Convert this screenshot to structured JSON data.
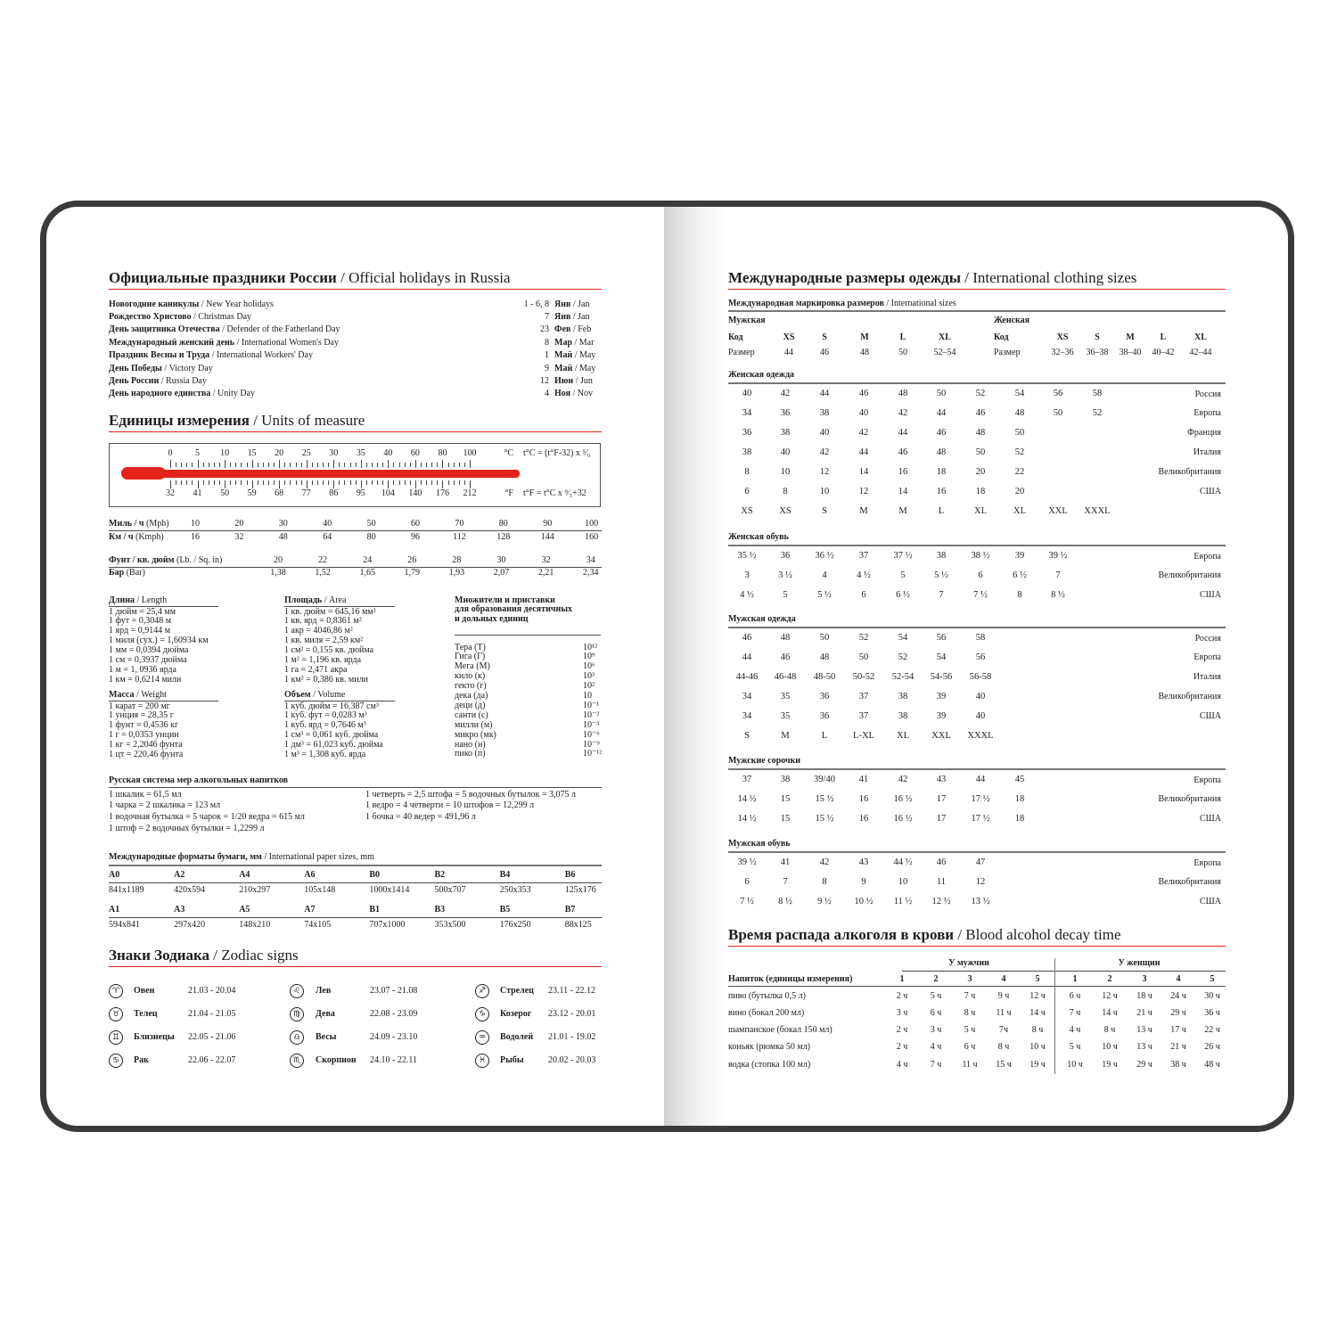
{
  "holidays": {
    "title_ru": "Официальные праздники России",
    "title_en": " / Official holidays in Russia",
    "items": [
      {
        "ru": "Новогодние каникулы",
        "en": " / New Year holidays",
        "day": "1 - 6, 8",
        "month_ru": "Янв",
        "month_en": " / Jan"
      },
      {
        "ru": "Рождество Христово",
        "en": " / Christmas Day",
        "day": "7",
        "month_ru": "Янв",
        "month_en": " / Jan"
      },
      {
        "ru": "День защитника Отечества",
        "en": " / Defender of the Fatherland Day",
        "day": "23",
        "month_ru": "Фев",
        "month_en": " / Feb"
      },
      {
        "ru": "Международный женский день",
        "en": " / International Women's Day",
        "day": "8",
        "month_ru": "Мар",
        "month_en": " / Mar"
      },
      {
        "ru": "Праздник Весны и Труда",
        "en": " / International Workers' Day",
        "day": "1",
        "month_ru": "Май",
        "month_en": " / May"
      },
      {
        "ru": "День Победы",
        "en": " / Victory Day",
        "day": "9",
        "month_ru": "Май",
        "month_en": " / May"
      },
      {
        "ru": "День России",
        "en": " / Russia Day",
        "day": "12",
        "month_ru": "Июн",
        "month_en": " / Jun"
      },
      {
        "ru": "День народного единства",
        "en": " / Unity Day",
        "day": "4",
        "month_ru": "Ноя",
        "month_en": " / Nov"
      }
    ]
  },
  "units": {
    "title_ru": "Единицы измерения",
    "title_en": " / Units of measure",
    "thermometer": {
      "celsius": [
        "0",
        "5",
        "10",
        "15",
        "20",
        "25",
        "30",
        "35",
        "40",
        "60",
        "80",
        "100"
      ],
      "fahrenheit": [
        "32",
        "41",
        "50",
        "59",
        "68",
        "77",
        "86",
        "95",
        "104",
        "140",
        "176",
        "212"
      ],
      "c_unit": "°C",
      "f_unit": "°F",
      "c_formula": "t°C = (t°F-32) x ⁵⁄₉",
      "f_formula": "t°F = t°C x ⁹⁄₅+32",
      "bar_color": "#e2231a"
    },
    "speed": {
      "mph_ru": "Миль / ч",
      "mph_en": " (Mph)",
      "kmph_ru": "Км / ч",
      "kmph_en": " (Kmph)",
      "mph": [
        "10",
        "20",
        "30",
        "40",
        "50",
        "60",
        "70",
        "80",
        "90",
        "100"
      ],
      "kmph": [
        "16",
        "32",
        "48",
        "64",
        "80",
        "96",
        "112",
        "128",
        "144",
        "160"
      ]
    },
    "pressure": {
      "psi_ru": "Фунт / кв. дюйм",
      "psi_en": " (Lb. / Sq. in)",
      "bar_ru": "Бар",
      "bar_en": " (Bar)",
      "psi": [
        "20",
        "22",
        "24",
        "26",
        "28",
        "30",
        "32",
        "34"
      ],
      "bar": [
        "1,38",
        "1,52",
        "1,65",
        "1,79",
        "1,93",
        "2,07",
        "2,21",
        "2,34"
      ]
    },
    "length": {
      "title_ru": "Длина",
      "title_en": " / Length",
      "items": [
        "1 дюйм = 25,4 мм",
        "1 фут = 0,3048 м",
        "1 ярд = 0,9144 м",
        "1 миля (сух.) = 1,60934 км",
        "1 мм = 0,0394 дюйма",
        "1 см = 0,3937 дюйма",
        "1 м = 1, 0936 ярда",
        "1 км = 0,6214 мили"
      ]
    },
    "weight": {
      "title_ru": "Масса",
      "title_en": " / Weight",
      "items": [
        "1 карат = 200 мг",
        "1 унция = 28,35 г",
        "1 фунт = 0,4536 кг",
        "1 г = 0,0353 унции",
        "1 кг = 2,2046 фунта",
        "1 цт = 220,46 фунта"
      ]
    },
    "area": {
      "title_ru": "Площадь",
      "title_en": " / Area",
      "items": [
        "1 кв. дюйм = 645,16 мм²",
        "1 кв. ярд = 0,8361 м²",
        "1 акр = 4046,86 м²",
        "1 кв. миля = 2,59 км²",
        "1 см² = 0,155 кв. дюйма",
        "1 м² = 1,196 кв. ярда",
        "1 га = 2,471 акра",
        "1 км² = 0,386 кв. мили"
      ]
    },
    "volume": {
      "title_ru": "Объем",
      "title_en": " / Volume",
      "items": [
        "1 куб. дюйм = 16,387 см³",
        "1 куб. фут = 0,0283 м³",
        "1 куб. ярд = 0,7646 м³",
        "1 см³ = 0,061 куб. дюйма",
        "1 дм³ = 61,023 куб. дюйма",
        "1 м³ = 1,308 куб. ярда"
      ]
    },
    "prefixes": {
      "title": [
        "Множители и приставки",
        "для образования десятичных",
        "и дольных единиц"
      ],
      "items": [
        {
          "name": "Тера (Т)",
          "value": "10¹²"
        },
        {
          "name": "Гига (Г)",
          "value": "10⁹"
        },
        {
          "name": "Мега (М)",
          "value": "10⁶"
        },
        {
          "name": "кило (к)",
          "value": "10³"
        },
        {
          "name": "гекто (г)",
          "value": "10²"
        },
        {
          "name": "дека (да)",
          "value": "10"
        },
        {
          "name": "деци (д)",
          "value": "10⁻¹"
        },
        {
          "name": "санти (с)",
          "value": "10⁻²"
        },
        {
          "name": "милли (м)",
          "value": "10⁻³"
        },
        {
          "name": "микро (мк)",
          "value": "10⁻⁶"
        },
        {
          "name": "нано (н)",
          "value": "10⁻⁹"
        },
        {
          "name": "пико (п)",
          "value": "10⁻¹²"
        }
      ]
    }
  },
  "alcohol_measures": {
    "title": "Русская система мер алкогольных напитков",
    "left": [
      "1 шкалик = 61,5 мл",
      "1 чарка = 2 шкалика = 123 мл",
      "1 водочная бутылка = 5 чарок = 1/20 ведра = 615 мл",
      "1 штоф = 2 водочных бутылки = 1,2299 л"
    ],
    "right": [
      "1 четверть = 2,5 штофа = 5 водочных бутылок = 3,075 л",
      "1 ведро = 4 четверти = 10 штофов = 12,299 л",
      "1 бочка = 40 ведер = 491,96 л"
    ]
  },
  "paper": {
    "title_ru": "Международные форматы бумаги, мм",
    "title_en": " / International paper sizes, mm",
    "rows": [
      [
        {
          "name": "A0",
          "size": "841x1189"
        },
        {
          "name": "A2",
          "size": "420x594"
        },
        {
          "name": "A4",
          "size": "210x297"
        },
        {
          "name": "A6",
          "size": "105x148"
        },
        {
          "name": "B0",
          "size": "1000x1414"
        },
        {
          "name": "B2",
          "size": "500x707"
        },
        {
          "name": "B4",
          "size": "250x353"
        },
        {
          "name": "B6",
          "size": "125x176"
        }
      ],
      [
        {
          "name": "A1",
          "size": "594x841"
        },
        {
          "name": "A3",
          "size": "297x420"
        },
        {
          "name": "A5",
          "size": "148x210"
        },
        {
          "name": "A7",
          "size": "74x105"
        },
        {
          "name": "B1",
          "size": "707x1000"
        },
        {
          "name": "B3",
          "size": "353x500"
        },
        {
          "name": "B5",
          "size": "176x250"
        },
        {
          "name": "B7",
          "size": "88x125"
        }
      ]
    ]
  },
  "zodiac": {
    "title_ru": "Знаки Зодиака",
    "title_en": " / Zodiac signs",
    "signs": [
      {
        "name": "Овен",
        "dates": "21.03 - 20.04",
        "icon": "aries-icon",
        "glyph": "♈"
      },
      {
        "name": "Телец",
        "dates": "21.04 - 21.05",
        "icon": "taurus-icon",
        "glyph": "♉"
      },
      {
        "name": "Близнецы",
        "dates": "22.05 - 21.06",
        "icon": "gemini-icon",
        "glyph": "♊"
      },
      {
        "name": "Рак",
        "dates": "22.06 - 22.07",
        "icon": "cancer-icon",
        "glyph": "♋"
      },
      {
        "name": "Лев",
        "dates": "23.07 - 21.08",
        "icon": "leo-icon",
        "glyph": "♌"
      },
      {
        "name": "Дева",
        "dates": "22.08 - 23.09",
        "icon": "virgo-icon",
        "glyph": "♍"
      },
      {
        "name": "Весы",
        "dates": "24.09 - 23.10",
        "icon": "libra-icon",
        "glyph": "♎"
      },
      {
        "name": "Скорпион",
        "dates": "24.10 - 22.11",
        "icon": "scorpio-icon",
        "glyph": "♏"
      },
      {
        "name": "Стрелец",
        "dates": "23.11 - 22.12",
        "icon": "sagittarius-icon",
        "glyph": "♐"
      },
      {
        "name": "Козерог",
        "dates": "23.12 - 20.01",
        "icon": "capricorn-icon",
        "glyph": "♑"
      },
      {
        "name": "Водолей",
        "dates": "21.01 - 19.02",
        "icon": "aquarius-icon",
        "glyph": "♒"
      },
      {
        "name": "Рыбы",
        "dates": "20.02 - 20.03",
        "icon": "pisces-icon",
        "glyph": "♓"
      }
    ]
  },
  "clothing": {
    "title_ru": "Международные размеры одежды",
    "title_en": " / International clothing sizes",
    "marking": {
      "title_ru": "Международная маркировка размеров",
      "title_en": " / International sizes",
      "men": {
        "label": "Мужская",
        "code_label": "Код",
        "size_label": "Размер",
        "codes": [
          "XS",
          "S",
          "M",
          "L",
          "XL"
        ],
        "sizes": [
          "44",
          "46",
          "48",
          "50",
          "52–54"
        ]
      },
      "women": {
        "label": "Женская",
        "code_label": "Код",
        "size_label": "Размер",
        "codes": [
          "XS",
          "S",
          "M",
          "L",
          "XL"
        ],
        "sizes": [
          "32–36",
          "36–38",
          "38–40",
          "40–42",
          "42–44"
        ]
      }
    },
    "tables": [
      {
        "title": "Женская одежда",
        "rows": [
          {
            "values": [
              "40",
              "42",
              "44",
              "46",
              "48",
              "50",
              "52",
              "54",
              "56",
              "58"
            ],
            "country": "Россия"
          },
          {
            "values": [
              "34",
              "36",
              "38",
              "40",
              "42",
              "44",
              "46",
              "48",
              "50",
              "52"
            ],
            "country": "Европа"
          },
          {
            "values": [
              "36",
              "38",
              "40",
              "42",
              "44",
              "46",
              "48",
              "50"
            ],
            "country": "Франция"
          },
          {
            "values": [
              "38",
              "40",
              "42",
              "44",
              "46",
              "48",
              "50",
              "52"
            ],
            "country": "Италия"
          },
          {
            "values": [
              "8",
              "10",
              "12",
              "14",
              "16",
              "18",
              "20",
              "22"
            ],
            "country": "Великобритания"
          },
          {
            "values": [
              "6",
              "8",
              "10",
              "12",
              "14",
              "16",
              "18",
              "20"
            ],
            "country": "США"
          },
          {
            "values": [
              "XS",
              "XS",
              "S",
              "M",
              "M",
              "L",
              "XL",
              "XL",
              "XXL",
              "XXXL"
            ],
            "country": ""
          }
        ]
      },
      {
        "title": "Женская обувь",
        "rows": [
          {
            "values": [
              "35 ½",
              "36",
              "36 ½",
              "37",
              "37 ½",
              "38",
              "38 ½",
              "39",
              "39 ½"
            ],
            "country": "Европа"
          },
          {
            "values": [
              "3",
              "3 ½",
              "4",
              "4 ½",
              "5",
              "5 ½",
              "6",
              "6 ½",
              "7"
            ],
            "country": "Великобритания"
          },
          {
            "values": [
              "4 ½",
              "5",
              "5 ½",
              "6",
              "6 ½",
              "7",
              "7 ½",
              "8",
              "8 ½"
            ],
            "country": "США"
          }
        ]
      },
      {
        "title": "Мужская одежда",
        "rows": [
          {
            "values": [
              "46",
              "48",
              "50",
              "52",
              "54",
              "56",
              "58"
            ],
            "country": "Россия"
          },
          {
            "values": [
              "44",
              "46",
              "48",
              "50",
              "52",
              "54",
              "56"
            ],
            "country": "Европа"
          },
          {
            "values": [
              "44-46",
              "46-48",
              "48-50",
              "50-52",
              "52-54",
              "54-56",
              "56-58"
            ],
            "country": "Италия"
          },
          {
            "values": [
              "34",
              "35",
              "36",
              "37",
              "38",
              "39",
              "40"
            ],
            "country": "Великобритания"
          },
          {
            "values": [
              "34",
              "35",
              "36",
              "37",
              "38",
              "39",
              "40"
            ],
            "country": "США"
          },
          {
            "values": [
              "S",
              "M",
              "L",
              "L-XL",
              "XL",
              "XXL",
              "XXXL"
            ],
            "country": ""
          }
        ]
      },
      {
        "title": "Мужские сорочки",
        "rows": [
          {
            "values": [
              "37",
              "38",
              "39/40",
              "41",
              "42",
              "43",
              "44",
              "45"
            ],
            "country": "Европа"
          },
          {
            "values": [
              "14 ½",
              "15",
              "15 ½",
              "16",
              "16 ½",
              "17",
              "17 ½",
              "18"
            ],
            "country": "Великобритания"
          },
          {
            "values": [
              "14 ½",
              "15",
              "15 ½",
              "16",
              "16 ½",
              "17",
              "17 ½",
              "18"
            ],
            "country": "США"
          }
        ]
      },
      {
        "title": "Мужская обувь",
        "rows": [
          {
            "values": [
              "39 ½",
              "41",
              "42",
              "43",
              "44 ½",
              "46",
              "47"
            ],
            "country": "Европа"
          },
          {
            "values": [
              "6",
              "7",
              "8",
              "9",
              "10",
              "11",
              "12"
            ],
            "country": "Великобритания"
          },
          {
            "values": [
              "7 ½",
              "8 ½",
              "9 ½",
              "10 ½",
              "11 ½",
              "12 ½",
              "13 ½"
            ],
            "country": "США"
          }
        ]
      }
    ]
  },
  "alcohol_decay": {
    "title_ru": "Время распада алкоголя в крови",
    "title_en": " / Blood alcohol decay time",
    "men_label": "У мужчин",
    "women_label": "У женщин",
    "drink_header": "Напиток (единицы измерения)",
    "columns": [
      "1",
      "2",
      "3",
      "4",
      "5"
    ],
    "rows": [
      {
        "drink": "пиво (бутылка 0,5 л)",
        "men": [
          "2 ч",
          "5 ч",
          "7 ч",
          "9 ч",
          "12 ч"
        ],
        "women": [
          "6 ч",
          "12 ч",
          "18 ч",
          "24 ч",
          "30 ч"
        ]
      },
      {
        "drink": "вино (бокал 200 мл)",
        "men": [
          "3 ч",
          "6 ч",
          "8 ч",
          "11 ч",
          "14 ч"
        ],
        "women": [
          "7 ч",
          "14 ч",
          "21 ч",
          "29 ч",
          "36 ч"
        ]
      },
      {
        "drink": "шампанское (бокал 150 мл)",
        "men": [
          "2 ч",
          "3 ч",
          "5 ч",
          "7ч",
          "8 ч"
        ],
        "women": [
          "4 ч",
          "8 ч",
          "13 ч",
          "17 ч",
          "22 ч"
        ]
      },
      {
        "drink": "коньяк (рюмка 50 мл)",
        "men": [
          "2 ч",
          "4 ч",
          "6 ч",
          "8 ч",
          "10 ч"
        ],
        "women": [
          "5 ч",
          "10 ч",
          "13 ч",
          "21 ч",
          "26 ч"
        ]
      },
      {
        "drink": "водка (стопка 100 мл)",
        "men": [
          "4 ч",
          "7 ч",
          "11 ч",
          "15 ч",
          "19 ч"
        ],
        "women": [
          "10 ч",
          "19 ч",
          "29 ч",
          "38 ч",
          "48 ч"
        ]
      }
    ]
  }
}
